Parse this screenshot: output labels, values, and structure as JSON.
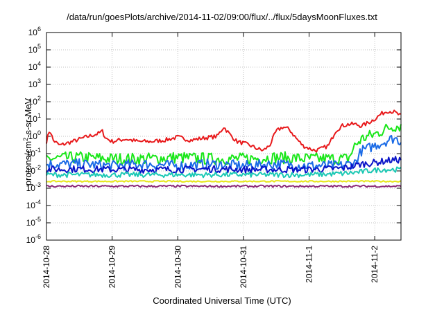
{
  "chart_data": {
    "type": "line",
    "title": "/data/run/goesPlots/archive/2014-11-02/09:00/flux/../flux/5daysMoonFluxes.txt",
    "xlabel": "Coordinated Universal Time (UTC)",
    "ylabel_base": "protons/cm",
    "ylabel_sup": "2",
    "ylabel_tail": "-s-sr-MeV",
    "yscale": "log",
    "ylim_exp": [
      -6,
      6
    ],
    "y_tick_labels": [
      {
        "base": "10",
        "exp": "6"
      },
      {
        "base": "10",
        "exp": "5"
      },
      {
        "base": "10",
        "exp": "4"
      },
      {
        "base": "10",
        "exp": "3"
      },
      {
        "base": "10",
        "exp": "2"
      },
      {
        "base": "10",
        "exp": "1"
      },
      {
        "base": "10",
        "exp": "0"
      },
      {
        "base": "10",
        "exp": "-1"
      },
      {
        "base": "10",
        "exp": "-2"
      },
      {
        "base": "10",
        "exp": "-3"
      },
      {
        "base": "10",
        "exp": "-4"
      },
      {
        "base": "10",
        "exp": "-5"
      },
      {
        "base": "10",
        "exp": "-6"
      }
    ],
    "x_ticks": [
      "2014-10-28",
      "2014-10-29",
      "2014-10-30",
      "2014-10-31",
      "2014-11-1",
      "2014-11-2"
    ],
    "xlim_days": [
      0,
      5.4
    ],
    "grid": true,
    "series": [
      {
        "color": "#e8191b",
        "points": [
          [
            0,
            0.5
          ],
          [
            0.05,
            2.5
          ],
          [
            0.1,
            0.6
          ],
          [
            0.2,
            0.3
          ],
          [
            0.4,
            0.5
          ],
          [
            0.6,
            0.9
          ],
          [
            0.8,
            1.5
          ],
          [
            0.85,
            2
          ],
          [
            0.9,
            0.8
          ],
          [
            1.0,
            0.5
          ],
          [
            1.2,
            0.7
          ],
          [
            1.4,
            0.5
          ],
          [
            1.6,
            0.5
          ],
          [
            1.8,
            0.6
          ],
          [
            2.0,
            0.9
          ],
          [
            2.2,
            0.6
          ],
          [
            2.4,
            0.8
          ],
          [
            2.6,
            1.0
          ],
          [
            2.7,
            3.5
          ],
          [
            2.8,
            1.2
          ],
          [
            2.9,
            0.5
          ],
          [
            3.0,
            0.4
          ],
          [
            3.1,
            0.3
          ],
          [
            3.2,
            0.2
          ],
          [
            3.3,
            0.15
          ],
          [
            3.4,
            0.3
          ],
          [
            3.5,
            2.0
          ],
          [
            3.6,
            3.5
          ],
          [
            3.7,
            2.5
          ],
          [
            3.8,
            0.8
          ],
          [
            3.9,
            0.3
          ],
          [
            4.0,
            0.2
          ],
          [
            4.1,
            0.15
          ],
          [
            4.2,
            0.2
          ],
          [
            4.3,
            0.3
          ],
          [
            4.4,
            2
          ],
          [
            4.5,
            4
          ],
          [
            4.6,
            5
          ],
          [
            4.7,
            5
          ],
          [
            4.8,
            4
          ],
          [
            4.9,
            6
          ],
          [
            5.0,
            10
          ],
          [
            5.1,
            20
          ],
          [
            5.2,
            30
          ],
          [
            5.3,
            25
          ],
          [
            5.4,
            15
          ]
        ],
        "noise": 0.12
      },
      {
        "color": "#19e619",
        "points": [
          [
            0,
            0.05
          ],
          [
            0.5,
            0.06
          ],
          [
            1.0,
            0.05
          ],
          [
            1.5,
            0.05
          ],
          [
            2.0,
            0.06
          ],
          [
            2.5,
            0.05
          ],
          [
            3.0,
            0.05
          ],
          [
            3.5,
            0.06
          ],
          [
            4.0,
            0.05
          ],
          [
            4.5,
            0.05
          ],
          [
            4.6,
            0.05
          ],
          [
            4.7,
            0.3
          ],
          [
            4.8,
            0.7
          ],
          [
            4.9,
            1.0
          ],
          [
            5.0,
            1.3
          ],
          [
            5.1,
            2.0
          ],
          [
            5.2,
            3.0
          ],
          [
            5.3,
            4.0
          ],
          [
            5.4,
            4.0
          ]
        ],
        "noise": 0.35
      },
      {
        "color": "#1a6ae6",
        "points": [
          [
            0,
            0.025
          ],
          [
            0.5,
            0.025
          ],
          [
            1.0,
            0.02
          ],
          [
            1.5,
            0.025
          ],
          [
            2.0,
            0.02
          ],
          [
            2.5,
            0.025
          ],
          [
            3.0,
            0.02
          ],
          [
            3.5,
            0.025
          ],
          [
            4.0,
            0.02
          ],
          [
            4.5,
            0.02
          ],
          [
            4.7,
            0.03
          ],
          [
            4.8,
            0.15
          ],
          [
            4.9,
            0.2
          ],
          [
            5.0,
            0.3
          ],
          [
            5.1,
            0.4
          ],
          [
            5.2,
            0.6
          ],
          [
            5.3,
            0.8
          ],
          [
            5.4,
            0.5
          ]
        ],
        "noise": 0.3
      },
      {
        "color": "#0a14c8",
        "points": [
          [
            0,
            0.012
          ],
          [
            0.5,
            0.013
          ],
          [
            1.0,
            0.012
          ],
          [
            1.5,
            0.012
          ],
          [
            2.0,
            0.012
          ],
          [
            2.5,
            0.013
          ],
          [
            3.0,
            0.012
          ],
          [
            3.5,
            0.012
          ],
          [
            4.0,
            0.012
          ],
          [
            4.5,
            0.014
          ],
          [
            4.7,
            0.02
          ],
          [
            4.8,
            0.025
          ],
          [
            5.0,
            0.03
          ],
          [
            5.2,
            0.04
          ],
          [
            5.4,
            0.045
          ]
        ],
        "noise": 0.2
      },
      {
        "color": "#1ac8b4",
        "points": [
          [
            0,
            0.006
          ],
          [
            1.0,
            0.006
          ],
          [
            2.0,
            0.006
          ],
          [
            3.0,
            0.006
          ],
          [
            4.0,
            0.006
          ],
          [
            4.5,
            0.007
          ],
          [
            4.7,
            0.008
          ],
          [
            4.9,
            0.01
          ],
          [
            5.1,
            0.012
          ],
          [
            5.3,
            0.012
          ],
          [
            5.4,
            0.012
          ]
        ],
        "noise": 0.15
      },
      {
        "color": "#e6e619",
        "points": [
          [
            0,
            0.0025
          ],
          [
            1.0,
            0.0025
          ],
          [
            2.0,
            0.0025
          ],
          [
            3.0,
            0.0025
          ],
          [
            4.0,
            0.0025
          ],
          [
            5.0,
            0.0025
          ],
          [
            5.4,
            0.0025
          ]
        ],
        "noise": 0.04
      },
      {
        "color": "#8c2a78",
        "points": [
          [
            0,
            0.0013
          ],
          [
            1.0,
            0.0013
          ],
          [
            2.0,
            0.0013
          ],
          [
            3.0,
            0.0013
          ],
          [
            4.0,
            0.0013
          ],
          [
            5.0,
            0.0013
          ],
          [
            5.4,
            0.0013
          ]
        ],
        "noise": 0.06
      }
    ]
  }
}
